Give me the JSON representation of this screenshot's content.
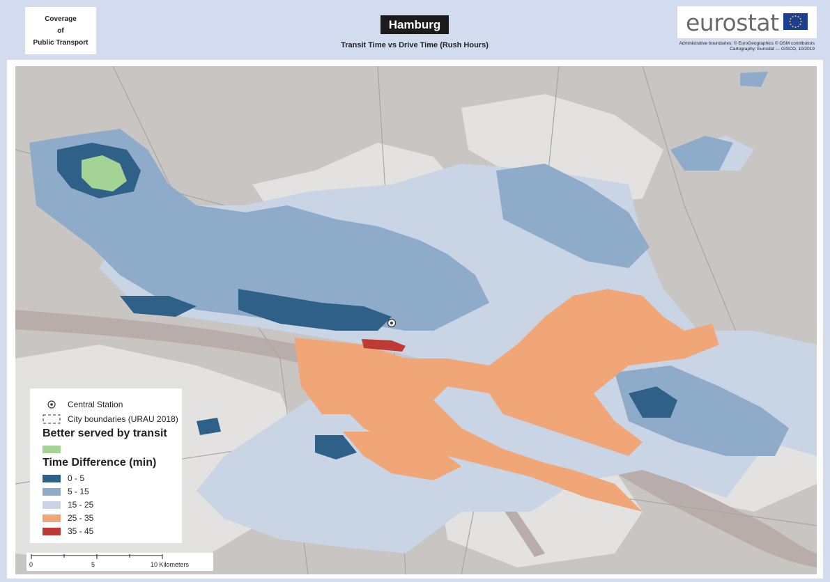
{
  "header": {
    "coverage_line1": "Coverage",
    "coverage_line2": "of",
    "coverage_line3": "Public Transport",
    "title": "Hamburg",
    "subtitle": "Transit Time vs Drive Time (Rush Hours)",
    "logo_text": "eurostat",
    "credit_line1": "Administrative boundaries: © EuroGeographics © OSM contributors",
    "credit_line2": "Cartography: Eurostat — GISCO, 10/2019"
  },
  "legend": {
    "central_station": "Central Station",
    "city_boundaries": "City boundaries (URAU 2018)",
    "better_served_heading": "Better served by transit",
    "better_served_color": "#a5d395",
    "time_diff_heading": "Time Difference (min)",
    "classes": [
      {
        "label": "0 - 5",
        "color": "#2f6088"
      },
      {
        "label": "5 - 15",
        "color": "#8eabc9"
      },
      {
        "label": "15 - 25",
        "color": "#c9d4e4"
      },
      {
        "label": "25 - 35",
        "color": "#f0a677"
      },
      {
        "label": "35 - 45",
        "color": "#be3a35"
      }
    ]
  },
  "scale": {
    "tick0": "0",
    "tick5": "5",
    "tick10": "10 Kilometers"
  },
  "map": {
    "background_color": "#c8c5c2",
    "water_color": "#b6aaa7",
    "urban_color": "#e6e5e4"
  }
}
